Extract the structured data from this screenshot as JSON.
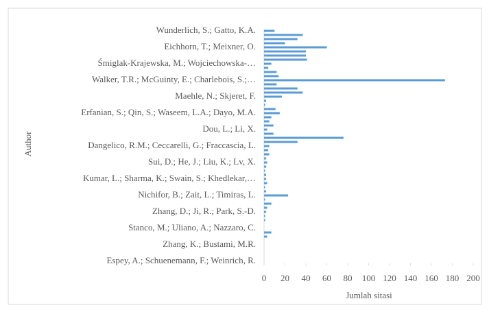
{
  "chart_data": {
    "type": "hbar",
    "x_label": "Jumlah sitasi",
    "y_label": "Author",
    "color": "#5b9bd5",
    "categories": [
      "Wunderlich, S.; Gatto, K.A.",
      null,
      null,
      null,
      "Eichhorn, T.; Meixner, O.",
      null,
      null,
      null,
      "Śmiglak-Krajewska, M.; Wojciechowska-…",
      null,
      null,
      null,
      "Walker, T.R.; McGuinty, E.; Charlebois, S.;…",
      null,
      null,
      null,
      "Maehle, N.; Skjeret, F.",
      null,
      null,
      null,
      "Erfanian, S.; Qin, S.; Waseem, L.A.; Dayo, M.A.",
      null,
      null,
      null,
      "Dou, L.; Li, X.",
      null,
      null,
      null,
      "Dangelico, R.M.; Ceccarelli, G.; Fraccascia, L.",
      null,
      null,
      null,
      "Sui, D.; He, J.; Liu, K.; Lv, X.",
      null,
      null,
      null,
      "Kumar, L.; Sharma, K.; Swain, S.; Khedlekar,…",
      null,
      null,
      null,
      "Nichifor, B.; Zait, L.; Timiras, L.",
      null,
      null,
      null,
      "Zhang, D.; Ji, R.; Park, S.-D.",
      null,
      null,
      null,
      "Stanco, M.; Uliano, A.; Nazzaro, C.",
      null,
      null,
      null,
      "Zhang, K.; Bustami, M.R.",
      null,
      null,
      null,
      "Espey, A.; Schuenemann, F.; Weinrich, R."
    ],
    "values": [
      10,
      37,
      32,
      20,
      60,
      40,
      40,
      41,
      7,
      4,
      12,
      14,
      173,
      12,
      32,
      37,
      17,
      2,
      1,
      11,
      15,
      7,
      5,
      9,
      3,
      9,
      76,
      32,
      5,
      4,
      5,
      2,
      3,
      2,
      1,
      2,
      2,
      3,
      1,
      2,
      23,
      1,
      7,
      3,
      2,
      1,
      1,
      0,
      0,
      7,
      3,
      0,
      0,
      0,
      0,
      0,
      0
    ],
    "xlim": [
      0,
      200
    ],
    "xticks": [
      0,
      20,
      40,
      60,
      80,
      100,
      120,
      140,
      160,
      180,
      200
    ]
  }
}
